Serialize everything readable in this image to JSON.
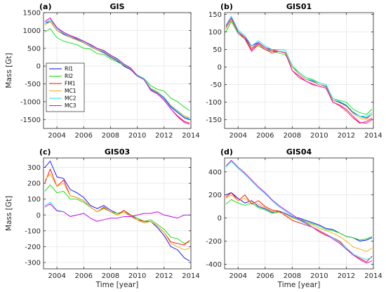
{
  "chart_data": [
    {
      "type": "line",
      "letter": "(a)",
      "title": "GIS",
      "ylabel": "Mass [Gt]",
      "xlabel": "",
      "xlim": [
        2003.0,
        2014.0
      ],
      "ylim": [
        -1750,
        1500
      ],
      "xticks": [
        2004,
        2006,
        2008,
        2010,
        2012,
        2014
      ],
      "yticks": [
        -1500,
        -1000,
        -500,
        0,
        500,
        1000,
        1500
      ],
      "grid": true,
      "legend": true,
      "legend_position": "left",
      "x": [
        2003.1,
        2003.5,
        2004.0,
        2004.5,
        2005.0,
        2005.5,
        2006.0,
        2006.5,
        2007.0,
        2007.5,
        2008.0,
        2008.5,
        2009.0,
        2009.5,
        2010.0,
        2010.5,
        2011.0,
        2011.5,
        2012.0,
        2012.5,
        2013.0,
        2013.5,
        2013.9
      ],
      "series": [
        {
          "name": "RI1",
          "values": [
            1200,
            1250,
            1000,
            900,
            800,
            750,
            650,
            550,
            450,
            380,
            250,
            150,
            0,
            -100,
            -280,
            -380,
            -650,
            -750,
            -900,
            -1150,
            -1300,
            -1450,
            -1500
          ]
        },
        {
          "name": "RI2",
          "values": [
            950,
            1050,
            800,
            700,
            650,
            600,
            500,
            480,
            350,
            330,
            200,
            120,
            20,
            -80,
            -250,
            -350,
            -550,
            -650,
            -700,
            -900,
            -1000,
            -1150,
            -1250
          ]
        },
        {
          "name": "FM1",
          "values": [
            1250,
            1350,
            1050,
            950,
            850,
            780,
            700,
            600,
            500,
            430,
            300,
            200,
            50,
            -50,
            -270,
            -370,
            -680,
            -780,
            -950,
            -1200,
            -1400,
            -1550,
            -1600
          ]
        },
        {
          "name": "MC1",
          "values": [
            1150,
            1250,
            1000,
            880,
            800,
            730,
            650,
            560,
            450,
            400,
            270,
            170,
            30,
            -80,
            -270,
            -360,
            -620,
            -720,
            -870,
            -1100,
            -1250,
            -1400,
            -1450
          ]
        },
        {
          "name": "MC2",
          "values": [
            1200,
            1300,
            1050,
            920,
            830,
            760,
            680,
            580,
            480,
            420,
            290,
            190,
            40,
            -60,
            -260,
            -360,
            -640,
            -740,
            -880,
            -1120,
            -1270,
            -1420,
            -1480
          ]
        },
        {
          "name": "MC3",
          "values": [
            1250,
            1350,
            1080,
            950,
            860,
            790,
            700,
            610,
            500,
            440,
            310,
            210,
            60,
            -50,
            -280,
            -380,
            -680,
            -780,
            -960,
            -1200,
            -1420,
            -1580,
            -1630
          ]
        }
      ]
    },
    {
      "type": "line",
      "letter": "(b)",
      "title": "GIS01",
      "ylabel": "",
      "xlabel": "",
      "xlim": [
        2003.0,
        2014.0
      ],
      "ylim": [
        -175,
        155
      ],
      "xticks": [
        2004,
        2006,
        2008,
        2010,
        2012,
        2014
      ],
      "yticks": [
        -150,
        -100,
        -50,
        0,
        50,
        100,
        150
      ],
      "grid": true,
      "legend": false,
      "x": [
        2003.1,
        2003.5,
        2004.0,
        2004.5,
        2005.0,
        2005.5,
        2006.0,
        2006.5,
        2007.0,
        2007.5,
        2008.0,
        2008.5,
        2009.0,
        2009.5,
        2010.0,
        2010.5,
        2011.0,
        2011.5,
        2012.0,
        2012.5,
        2013.0,
        2013.5,
        2013.9
      ],
      "series": [
        {
          "name": "RI1",
          "values": [
            110,
            135,
            100,
            85,
            60,
            70,
            55,
            50,
            45,
            40,
            0,
            -20,
            -35,
            -40,
            -50,
            -55,
            -95,
            -100,
            -110,
            -130,
            -140,
            -145,
            -135
          ]
        },
        {
          "name": "RI2",
          "values": [
            100,
            130,
            95,
            80,
            55,
            60,
            50,
            45,
            40,
            35,
            0,
            -15,
            -30,
            -35,
            -45,
            -50,
            -90,
            -95,
            -100,
            -120,
            -130,
            -135,
            -120
          ]
        },
        {
          "name": "FM1",
          "values": [
            115,
            140,
            100,
            80,
            45,
            65,
            50,
            40,
            45,
            40,
            -10,
            -30,
            -40,
            -50,
            -55,
            -60,
            -100,
            -110,
            -125,
            -145,
            -160,
            -155,
            -145
          ]
        },
        {
          "name": "MC1",
          "values": [
            110,
            135,
            100,
            85,
            55,
            68,
            55,
            48,
            45,
            42,
            0,
            -20,
            -35,
            -42,
            -50,
            -57,
            -95,
            -102,
            -112,
            -132,
            -145,
            -148,
            -135
          ]
        },
        {
          "name": "MC2",
          "values": [
            120,
            145,
            105,
            90,
            60,
            75,
            60,
            50,
            50,
            48,
            5,
            -15,
            -30,
            -38,
            -45,
            -50,
            -90,
            -98,
            -108,
            -128,
            -140,
            -140,
            -130
          ]
        },
        {
          "name": "MC3",
          "values": [
            115,
            140,
            100,
            85,
            50,
            70,
            55,
            45,
            45,
            40,
            -10,
            -25,
            -40,
            -48,
            -55,
            -60,
            -100,
            -108,
            -120,
            -140,
            -158,
            -160,
            -150
          ]
        }
      ]
    },
    {
      "type": "line",
      "letter": "(c)",
      "title": "GIS03",
      "ylabel": "Mass [Gt]",
      "xlabel": "Time [year]",
      "xlim": [
        2003.0,
        2014.0
      ],
      "ylim": [
        -340,
        360
      ],
      "xticks": [
        2004,
        2006,
        2008,
        2010,
        2012,
        2014
      ],
      "yticks": [
        -300,
        -200,
        -100,
        0,
        100,
        200,
        300
      ],
      "grid": true,
      "legend": false,
      "x": [
        2003.1,
        2003.5,
        2004.0,
        2004.5,
        2005.0,
        2005.5,
        2006.0,
        2006.5,
        2007.0,
        2007.5,
        2008.0,
        2008.5,
        2009.0,
        2009.5,
        2010.0,
        2010.5,
        2011.0,
        2011.5,
        2012.0,
        2012.5,
        2013.0,
        2013.5,
        2013.9
      ],
      "series": [
        {
          "name": "RI1",
          "values": [
            300,
            340,
            240,
            230,
            160,
            140,
            110,
            60,
            40,
            60,
            30,
            10,
            20,
            -10,
            -30,
            -50,
            -40,
            -80,
            -130,
            -200,
            -220,
            -270,
            -290
          ]
        },
        {
          "name": "RI2",
          "values": [
            150,
            190,
            140,
            150,
            100,
            100,
            80,
            50,
            20,
            40,
            20,
            10,
            20,
            0,
            -20,
            -40,
            -30,
            -60,
            -90,
            -140,
            -150,
            -180,
            -170
          ]
        },
        {
          "name": "FM1",
          "values": [
            200,
            290,
            180,
            220,
            120,
            110,
            90,
            50,
            20,
            50,
            20,
            0,
            30,
            0,
            -30,
            -40,
            -40,
            -70,
            -110,
            -170,
            -180,
            -190,
            -160
          ]
        },
        {
          "name": "MC1",
          "values": [
            220,
            260,
            180,
            200,
            120,
            110,
            90,
            50,
            20,
            45,
            20,
            0,
            20,
            -10,
            -30,
            -50,
            -40,
            -70,
            -110,
            -180,
            -200,
            -220,
            -210
          ]
        },
        {
          "name": "MC2",
          "values": [
            60,
            80,
            30,
            20,
            -10,
            0,
            10,
            -20,
            -40,
            -30,
            -20,
            -20,
            -10,
            -10,
            0,
            10,
            10,
            20,
            0,
            -10,
            -20,
            0,
            0
          ]
        },
        {
          "name": "MC3",
          "values": [
            50,
            70,
            25,
            20,
            -10,
            0,
            10,
            -20,
            -40,
            -30,
            -20,
            -20,
            -10,
            -10,
            0,
            10,
            10,
            20,
            0,
            -10,
            -20,
            0,
            0
          ]
        }
      ]
    },
    {
      "type": "line",
      "letter": "(d)",
      "title": "GIS04",
      "ylabel": "",
      "xlabel": "Time [year]",
      "xlim": [
        2003.0,
        2014.0
      ],
      "ylim": [
        -440,
        520
      ],
      "xticks": [
        2004,
        2006,
        2008,
        2010,
        2012,
        2014
      ],
      "yticks": [
        -400,
        -200,
        0,
        200,
        400
      ],
      "grid": true,
      "legend": false,
      "x": [
        2003.1,
        2003.5,
        2004.0,
        2004.5,
        2005.0,
        2005.5,
        2006.0,
        2006.5,
        2007.0,
        2007.5,
        2008.0,
        2008.5,
        2009.0,
        2009.5,
        2010.0,
        2010.5,
        2011.0,
        2011.5,
        2012.0,
        2012.5,
        2013.0,
        2013.5,
        2013.9
      ],
      "series": [
        {
          "name": "RI1",
          "values": [
            200,
            220,
            170,
            130,
            150,
            100,
            80,
            50,
            60,
            40,
            10,
            0,
            -20,
            -40,
            -60,
            -90,
            -100,
            -130,
            -160,
            -170,
            -200,
            -190,
            -170
          ]
        },
        {
          "name": "RI2",
          "values": [
            120,
            160,
            130,
            110,
            130,
            90,
            70,
            40,
            50,
            30,
            0,
            -10,
            -30,
            -50,
            -70,
            -100,
            -110,
            -130,
            -160,
            -170,
            -190,
            -180,
            -160
          ]
        },
        {
          "name": "FM1",
          "values": [
            180,
            220,
            150,
            200,
            120,
            150,
            100,
            70,
            60,
            20,
            -20,
            -40,
            -60,
            -80,
            -120,
            -150,
            -170,
            -200,
            -260,
            -320,
            -350,
            -380,
            -330
          ]
        },
        {
          "name": "MC1",
          "values": [
            170,
            200,
            150,
            170,
            130,
            120,
            90,
            60,
            50,
            30,
            0,
            -20,
            -40,
            -60,
            -90,
            -110,
            -130,
            -160,
            -200,
            -250,
            -270,
            -290,
            -260
          ]
        },
        {
          "name": "MC2",
          "values": [
            440,
            490,
            430,
            380,
            320,
            260,
            210,
            150,
            100,
            60,
            20,
            -20,
            -50,
            -80,
            -110,
            -140,
            -170,
            -210,
            -260,
            -310,
            -340,
            -360,
            -340
          ]
        },
        {
          "name": "MC3",
          "values": [
            450,
            500,
            440,
            390,
            330,
            270,
            220,
            160,
            110,
            70,
            30,
            -10,
            -40,
            -80,
            -110,
            -140,
            -180,
            -220,
            -270,
            -320,
            -360,
            -390,
            -370
          ]
        }
      ]
    }
  ],
  "colors": {
    "RI1": "#0000ff",
    "RI2": "#00e000",
    "FM1": "#ff0000",
    "MC1": "#ffa500",
    "MC2": "#00e5ee",
    "MC3": "#e000e0",
    "grid": "#e6e6e6",
    "axes": "#262626"
  }
}
